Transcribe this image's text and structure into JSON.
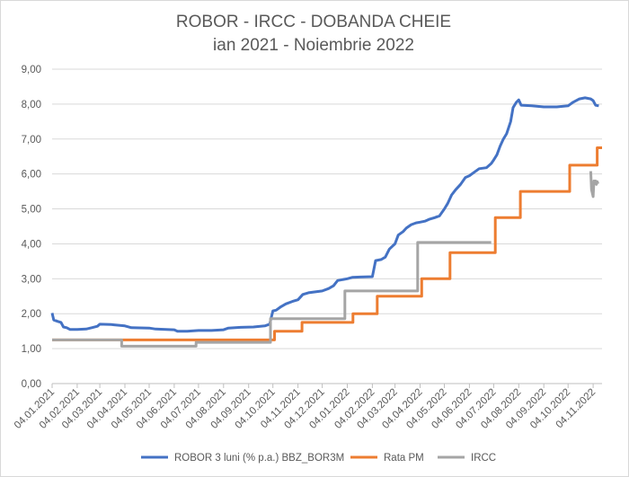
{
  "chart_data": {
    "type": "line",
    "title": "ROBOR - IRCC - DOBANDA CHEIE",
    "subtitle": "ian 2021 - Noiembrie 2022",
    "ylim": [
      0,
      9
    ],
    "y_ticks": [
      "0,00",
      "1,00",
      "2,00",
      "3,00",
      "4,00",
      "5,00",
      "6,00",
      "7,00",
      "8,00",
      "9,00"
    ],
    "x_ticks": [
      {
        "date": "2021-01-04",
        "label": "04.01.2021"
      },
      {
        "date": "2021-02-04",
        "label": "04.02.2021"
      },
      {
        "date": "2021-03-04",
        "label": "04.03.2021"
      },
      {
        "date": "2021-04-04",
        "label": "04.04.2021"
      },
      {
        "date": "2021-05-04",
        "label": "04.05.2021"
      },
      {
        "date": "2021-06-04",
        "label": "04.06.2021"
      },
      {
        "date": "2021-07-04",
        "label": "04.07.2021"
      },
      {
        "date": "2021-08-04",
        "label": "04.08.2021"
      },
      {
        "date": "2021-09-04",
        "label": "04.09.2021"
      },
      {
        "date": "2021-10-04",
        "label": "04.10.2021"
      },
      {
        "date": "2021-11-04",
        "label": "04.11.2021"
      },
      {
        "date": "2021-12-04",
        "label": "04.12.2021"
      },
      {
        "date": "2022-01-04",
        "label": "04.01.2022"
      },
      {
        "date": "2022-02-04",
        "label": "04.02.2022"
      },
      {
        "date": "2022-03-04",
        "label": "04.03.2022"
      },
      {
        "date": "2022-04-04",
        "label": "04.04.2022"
      },
      {
        "date": "2022-05-04",
        "label": "04.05.2022"
      },
      {
        "date": "2022-06-04",
        "label": "04.06.2022"
      },
      {
        "date": "2022-07-04",
        "label": "04.07.2022"
      },
      {
        "date": "2022-08-04",
        "label": "04.08.2022"
      },
      {
        "date": "2022-09-04",
        "label": "04.09.2022"
      },
      {
        "date": "2022-10-04",
        "label": "04.10.2022"
      },
      {
        "date": "2022-11-04",
        "label": "04.11.2022"
      }
    ],
    "grid": true,
    "legend_position": "bottom",
    "series": [
      {
        "name": "ROBOR 3 luni (% p.a.) BBZ_BOR3M",
        "color": "#4472C4",
        "points": [
          [
            "2021-01-04",
            2.02
          ],
          [
            "2021-01-06",
            1.82
          ],
          [
            "2021-01-11",
            1.78
          ],
          [
            "2021-01-15",
            1.75
          ],
          [
            "2021-01-18",
            1.62
          ],
          [
            "2021-01-22",
            1.6
          ],
          [
            "2021-01-26",
            1.55
          ],
          [
            "2021-02-04",
            1.55
          ],
          [
            "2021-02-15",
            1.56
          ],
          [
            "2021-02-22",
            1.6
          ],
          [
            "2021-03-01",
            1.64
          ],
          [
            "2021-03-04",
            1.7
          ],
          [
            "2021-03-18",
            1.69
          ],
          [
            "2021-04-04",
            1.65
          ],
          [
            "2021-04-12",
            1.6
          ],
          [
            "2021-05-04",
            1.59
          ],
          [
            "2021-05-12",
            1.56
          ],
          [
            "2021-06-04",
            1.54
          ],
          [
            "2021-06-08",
            1.5
          ],
          [
            "2021-06-20",
            1.5
          ],
          [
            "2021-07-04",
            1.52
          ],
          [
            "2021-07-20",
            1.52
          ],
          [
            "2021-08-04",
            1.54
          ],
          [
            "2021-08-10",
            1.59
          ],
          [
            "2021-08-25",
            1.61
          ],
          [
            "2021-09-10",
            1.62
          ],
          [
            "2021-09-24",
            1.65
          ],
          [
            "2021-09-30",
            1.7
          ],
          [
            "2021-10-04",
            2.08
          ],
          [
            "2021-10-08",
            2.1
          ],
          [
            "2021-10-14",
            2.2
          ],
          [
            "2021-10-20",
            2.28
          ],
          [
            "2021-10-28",
            2.35
          ],
          [
            "2021-11-04",
            2.4
          ],
          [
            "2021-11-10",
            2.55
          ],
          [
            "2021-11-17",
            2.6
          ],
          [
            "2021-12-04",
            2.65
          ],
          [
            "2021-12-12",
            2.72
          ],
          [
            "2021-12-18",
            2.8
          ],
          [
            "2021-12-23",
            2.95
          ],
          [
            "2022-01-04",
            3.0
          ],
          [
            "2022-01-10",
            3.04
          ],
          [
            "2022-01-20",
            3.05
          ],
          [
            "2022-02-04",
            3.06
          ],
          [
            "2022-02-08",
            3.52
          ],
          [
            "2022-02-15",
            3.55
          ],
          [
            "2022-02-20",
            3.62
          ],
          [
            "2022-02-25",
            3.85
          ],
          [
            "2022-03-04",
            4.0
          ],
          [
            "2022-03-08",
            4.25
          ],
          [
            "2022-03-14",
            4.35
          ],
          [
            "2022-03-18",
            4.45
          ],
          [
            "2022-03-24",
            4.55
          ],
          [
            "2022-03-30",
            4.6
          ],
          [
            "2022-04-04",
            4.62
          ],
          [
            "2022-04-10",
            4.65
          ],
          [
            "2022-04-15",
            4.7
          ],
          [
            "2022-04-22",
            4.75
          ],
          [
            "2022-04-28",
            4.8
          ],
          [
            "2022-05-04",
            5.0
          ],
          [
            "2022-05-08",
            5.15
          ],
          [
            "2022-05-13",
            5.4
          ],
          [
            "2022-05-18",
            5.55
          ],
          [
            "2022-05-24",
            5.7
          ],
          [
            "2022-05-30",
            5.9
          ],
          [
            "2022-06-04",
            5.95
          ],
          [
            "2022-06-10",
            6.05
          ],
          [
            "2022-06-16",
            6.15
          ],
          [
            "2022-06-25",
            6.18
          ],
          [
            "2022-07-01",
            6.3
          ],
          [
            "2022-07-04",
            6.4
          ],
          [
            "2022-07-08",
            6.55
          ],
          [
            "2022-07-12",
            6.8
          ],
          [
            "2022-07-16",
            7.0
          ],
          [
            "2022-07-20",
            7.15
          ],
          [
            "2022-07-25",
            7.5
          ],
          [
            "2022-07-28",
            7.9
          ],
          [
            "2022-08-01",
            8.05
          ],
          [
            "2022-08-04",
            8.12
          ],
          [
            "2022-08-07",
            7.97
          ],
          [
            "2022-08-20",
            7.95
          ],
          [
            "2022-09-04",
            7.92
          ],
          [
            "2022-09-20",
            7.92
          ],
          [
            "2022-10-04",
            7.95
          ],
          [
            "2022-10-10",
            8.05
          ],
          [
            "2022-10-18",
            8.15
          ],
          [
            "2022-10-25",
            8.18
          ],
          [
            "2022-11-01",
            8.15
          ],
          [
            "2022-11-04",
            8.1
          ],
          [
            "2022-11-07",
            7.97
          ],
          [
            "2022-11-11",
            7.95
          ]
        ]
      },
      {
        "name": "Rata PM",
        "color": "#ED7D31",
        "points": [
          [
            "2021-01-04",
            1.25
          ],
          [
            "2021-10-06",
            1.25
          ],
          [
            "2021-10-06",
            1.5
          ],
          [
            "2021-11-09",
            1.5
          ],
          [
            "2021-11-09",
            1.75
          ],
          [
            "2022-01-11",
            1.75
          ],
          [
            "2022-01-11",
            2.0
          ],
          [
            "2022-02-10",
            2.0
          ],
          [
            "2022-02-10",
            2.5
          ],
          [
            "2022-04-06",
            2.5
          ],
          [
            "2022-04-06",
            3.0
          ],
          [
            "2022-05-11",
            3.0
          ],
          [
            "2022-05-11",
            3.75
          ],
          [
            "2022-07-06",
            3.75
          ],
          [
            "2022-07-06",
            4.75
          ],
          [
            "2022-08-06",
            4.75
          ],
          [
            "2022-08-06",
            5.5
          ],
          [
            "2022-10-06",
            5.5
          ],
          [
            "2022-10-06",
            6.25
          ],
          [
            "2022-11-09",
            6.25
          ],
          [
            "2022-11-09",
            6.75
          ],
          [
            "2022-11-15",
            6.75
          ]
        ]
      },
      {
        "name": "IRCC",
        "color": "#A5A5A5",
        "points": [
          [
            "2021-01-04",
            1.25
          ],
          [
            "2021-03-31",
            1.25
          ],
          [
            "2021-03-31",
            1.07
          ],
          [
            "2021-07-01",
            1.07
          ],
          [
            "2021-07-01",
            1.18
          ],
          [
            "2021-10-01",
            1.18
          ],
          [
            "2021-10-01",
            1.86
          ],
          [
            "2022-01-01",
            1.86
          ],
          [
            "2022-01-01",
            2.65
          ],
          [
            "2022-04-01",
            2.65
          ],
          [
            "2022-04-01",
            4.04
          ],
          [
            "2022-07-01",
            4.04
          ],
          null,
          [
            "2022-11-01",
            6.08
          ],
          [
            "2022-11-02",
            5.55
          ],
          [
            "2022-11-03",
            5.45
          ],
          [
            "2022-11-04",
            5.35
          ],
          [
            "2022-11-05",
            5.8
          ],
          [
            "2022-11-06",
            5.72
          ],
          [
            "2022-11-07",
            5.8
          ],
          [
            "2022-11-08",
            5.7
          ],
          [
            "2022-11-09",
            5.78
          ],
          [
            "2022-11-10",
            5.72
          ]
        ]
      }
    ]
  }
}
